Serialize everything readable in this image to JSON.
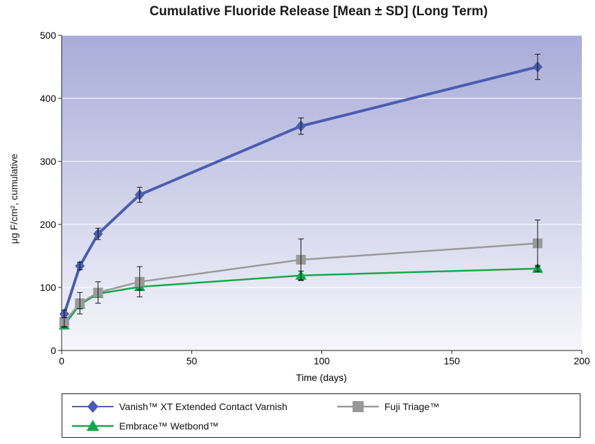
{
  "chart_data": {
    "type": "line",
    "title": "Cumulative Fluoride Release [Mean ± SD] (Long Term)",
    "xlabel": "Time (days)",
    "ylabel": "μg F/cm², cumulative",
    "xlim": [
      0,
      200
    ],
    "ylim": [
      0,
      500
    ],
    "xticks": [
      0,
      50,
      100,
      150,
      200
    ],
    "yticks": [
      0,
      100,
      200,
      300,
      400,
      500
    ],
    "grid": "horizontal",
    "legend_position": "bottom",
    "series": [
      {
        "name": "Vanish™ XT Extended Contact Varnish",
        "color": "#4a5eb0",
        "marker": "diamond",
        "x": [
          1,
          7,
          14,
          30,
          92,
          183
        ],
        "y": [
          58,
          134,
          185,
          247,
          356,
          450
        ],
        "err": [
          6,
          6,
          9,
          12,
          13,
          20
        ]
      },
      {
        "name": "Fuji Triage™",
        "color": "#999999",
        "marker": "square",
        "x": [
          1,
          7,
          14,
          30,
          92,
          183
        ],
        "y": [
          45,
          75,
          92,
          109,
          144,
          170
        ],
        "err": [
          7,
          17,
          17,
          24,
          33,
          37
        ]
      },
      {
        "name": "Embrace™ Wetbond™",
        "color": "#12a84a",
        "marker": "triangle",
        "x": [
          1,
          7,
          14,
          30,
          92,
          183
        ],
        "y": [
          40,
          73,
          90,
          101,
          119,
          130
        ],
        "err": [
          3,
          7,
          5,
          5,
          7,
          5
        ]
      }
    ]
  }
}
